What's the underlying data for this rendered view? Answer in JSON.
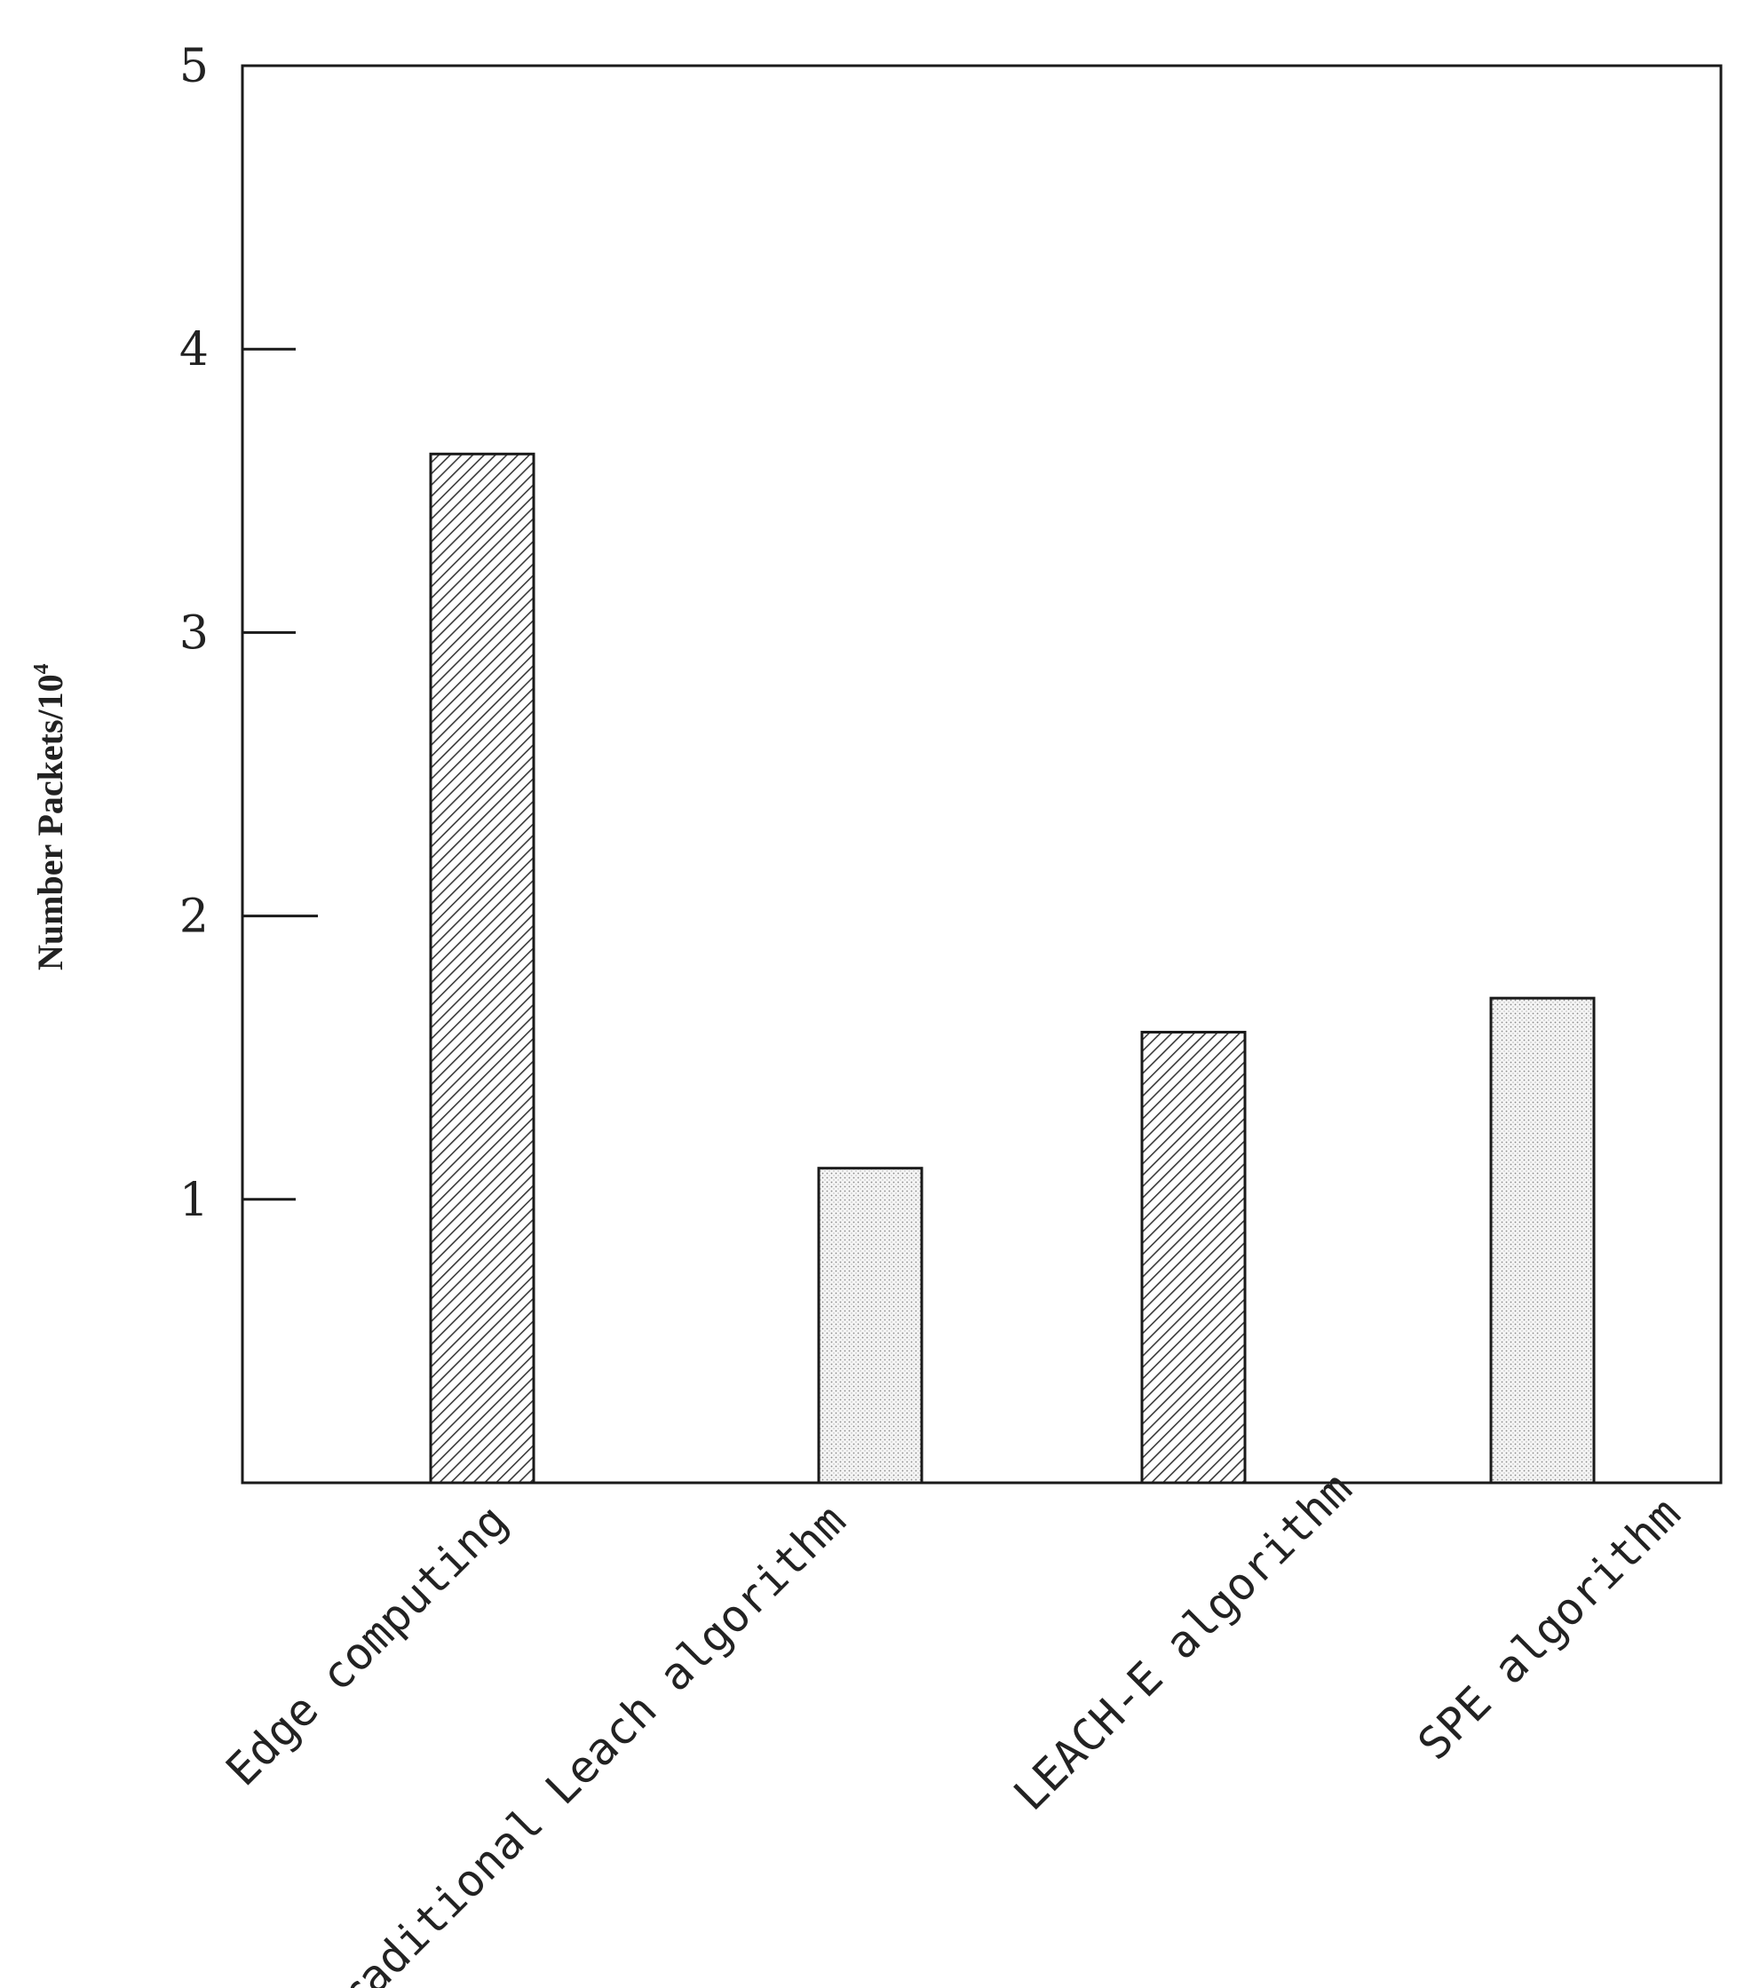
{
  "chart_data": {
    "type": "bar",
    "categories": [
      "Edge computing",
      "Traditional Leach algorithm",
      "LEACH-E algorithm",
      "SPE algorithm"
    ],
    "values": [
      3.63,
      1.11,
      1.59,
      1.71
    ],
    "patterns": [
      "diagonal-hatch",
      "dotted",
      "diagonal-hatch",
      "dotted"
    ],
    "title": "",
    "xlabel": "",
    "ylabel": "Number Packets/10",
    "ylabel_superscript": "4",
    "ylim": [
      0,
      5
    ],
    "yticks": [
      "1",
      "2",
      "3",
      "4",
      "5"
    ],
    "grid": false,
    "legend": "none",
    "colors": {
      "bar_stroke": "#1a1a1a",
      "hatch": "#3a3a3a",
      "dots": "#8a8a8a",
      "axis": "#1a1a1a"
    }
  }
}
